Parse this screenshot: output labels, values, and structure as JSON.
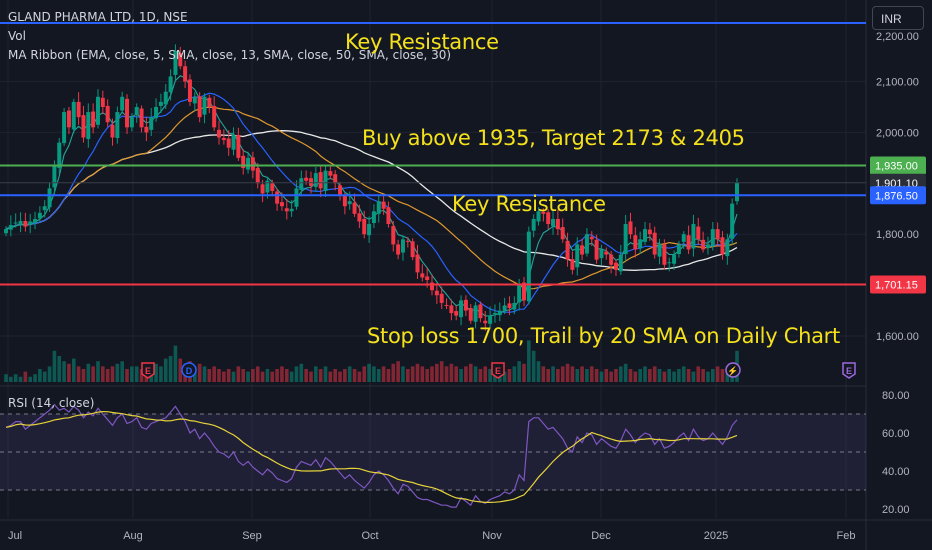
{
  "header": {
    "symbol_line": "GLAND PHARMA LTD, 1D, NSE",
    "vol_label": "Vol",
    "ma_ribbon_label": "MA Ribbon (EMA, close, 5, SMA, close, 13, SMA, close, 50, SMA, close, 30)",
    "rsi_label": "RSI (14, close)",
    "currency": "INR"
  },
  "annotations": {
    "key_resistance_top": "Key Resistance",
    "buy_text": "Buy above 1935, Target 2173 & 2405",
    "key_resistance_mid": "Key Resistance",
    "stop_loss_text": "Stop loss 1700, Trail by 20 SMA on Daily Chart"
  },
  "chart_data": {
    "type": "candlestick",
    "price_axis": {
      "ticks": [
        "2,100.00",
        "2,000.00",
        "1,800.00",
        "1,600.00"
      ],
      "values": [
        2100,
        2000,
        1800,
        1600
      ],
      "range": [
        1500,
        2215
      ]
    },
    "rsi_axis": {
      "ticks": [
        "80.00",
        "60.00",
        "40.00",
        "20.00"
      ],
      "values": [
        80,
        60,
        40,
        20
      ],
      "range": [
        14,
        86
      ],
      "bands": [
        70,
        50,
        30
      ]
    },
    "time_axis": [
      "Jul",
      "Aug",
      "Sep",
      "Oct",
      "Nov",
      "Dec",
      "2025",
      "Feb"
    ],
    "level_lines": [
      {
        "label": "1,935.00",
        "value": 1935,
        "color": "#4caf50"
      },
      {
        "label": "1,901.10",
        "value": 1901.1,
        "color": "#3a3e48"
      },
      {
        "label": "1,876.50",
        "value": 1876.5,
        "color": "#2962ff"
      },
      {
        "label": "1,701.15",
        "value": 1701.15,
        "color": "#f23645"
      },
      {
        "label": "",
        "value": 2215,
        "color": "#2962ff"
      }
    ],
    "close_series": [
      1810,
      1818,
      1823,
      1826,
      1815,
      1825,
      1830,
      1842,
      1855,
      1890,
      1935,
      1980,
      2040,
      2010,
      2060,
      2030,
      1990,
      2040,
      2010,
      2070,
      2050,
      2020,
      1990,
      2040,
      2070,
      2010,
      2030,
      2050,
      2010,
      2000,
      2030,
      2050,
      2060,
      2080,
      2110,
      2160,
      2130,
      2100,
      2060,
      2070,
      2030,
      2070,
      2050,
      2010,
      1990,
      1985,
      1970,
      1995,
      1950,
      1930,
      1950,
      1925,
      1900,
      1880,
      1905,
      1885,
      1860,
      1855,
      1845,
      1850,
      1890,
      1910,
      1905,
      1895,
      1920,
      1890,
      1925,
      1915,
      1900,
      1875,
      1855,
      1865,
      1840,
      1825,
      1800,
      1820,
      1845,
      1865,
      1850,
      1820,
      1780,
      1760,
      1790,
      1785,
      1755,
      1725,
      1715,
      1710,
      1690,
      1680,
      1665,
      1660,
      1645,
      1640,
      1670,
      1650,
      1630,
      1660,
      1635,
      1625,
      1640,
      1645,
      1650,
      1660,
      1655,
      1665,
      1700,
      1670,
      1805,
      1830,
      1845,
      1840,
      1820,
      1830,
      1810,
      1790,
      1750,
      1730,
      1780,
      1760,
      1800,
      1790,
      1750,
      1770,
      1760,
      1740,
      1730,
      1760,
      1820,
      1800,
      1770,
      1790,
      1810,
      1800,
      1760,
      1780,
      1740,
      1745,
      1760,
      1780,
      1800,
      1770,
      1820,
      1790,
      1770,
      1780,
      1810,
      1790,
      1760,
      1790,
      1860,
      1901
    ],
    "rsi_series": [
      63,
      64,
      66,
      66,
      62,
      64,
      66,
      68,
      70,
      72,
      75,
      72,
      73,
      71,
      74,
      72,
      68,
      71,
      69,
      73,
      70,
      67,
      64,
      68,
      70,
      65,
      66,
      68,
      63,
      62,
      65,
      66,
      67,
      68,
      71,
      74,
      70,
      66,
      60,
      62,
      57,
      60,
      57,
      53,
      50,
      49,
      47,
      50,
      45,
      43,
      45,
      42,
      40,
      38,
      41,
      39,
      36,
      35,
      34,
      36,
      42,
      45,
      44,
      43,
      46,
      42,
      47,
      45,
      42,
      39,
      36,
      38,
      35,
      33,
      31,
      34,
      38,
      40,
      38,
      35,
      31,
      28,
      33,
      32,
      29,
      26,
      25,
      25,
      24,
      23,
      22,
      22,
      21,
      21,
      26,
      24,
      22,
      27,
      24,
      23,
      25,
      26,
      27,
      29,
      28,
      30,
      38,
      35,
      66,
      68,
      68,
      65,
      62,
      63,
      60,
      57,
      52,
      50,
      58,
      55,
      60,
      59,
      54,
      57,
      55,
      53,
      52,
      56,
      62,
      59,
      55,
      58,
      60,
      59,
      54,
      57,
      52,
      53,
      55,
      58,
      60,
      56,
      62,
      58,
      56,
      57,
      60,
      57,
      54,
      58,
      64,
      67
    ],
    "volume": [
      3,
      2,
      3,
      2,
      4,
      2,
      3,
      5,
      4,
      6,
      12,
      10,
      8,
      7,
      9,
      6,
      5,
      7,
      6,
      8,
      6,
      5,
      6,
      7,
      8,
      5,
      6,
      6,
      5,
      5,
      6,
      7,
      6,
      9,
      10,
      14,
      9,
      7,
      8,
      6,
      7,
      6,
      5,
      6,
      5,
      4,
      5,
      4,
      6,
      5,
      4,
      5,
      6,
      4,
      5,
      4,
      5,
      6,
      5,
      4,
      6,
      7,
      5,
      4,
      6,
      5,
      6,
      4,
      5,
      4,
      5,
      6,
      5,
      4,
      6,
      7,
      6,
      5,
      6,
      5,
      7,
      8,
      6,
      5,
      6,
      7,
      6,
      5,
      6,
      7,
      8,
      6,
      7,
      6,
      5,
      6,
      7,
      6,
      5,
      6,
      5,
      6,
      5,
      4,
      5,
      6,
      8,
      7,
      16,
      12,
      8,
      6,
      5,
      6,
      5,
      6,
      7,
      6,
      5,
      6,
      5,
      6,
      5,
      4,
      5,
      4,
      5,
      6,
      7,
      5,
      4,
      5,
      6,
      5,
      6,
      5,
      4,
      5,
      4,
      5,
      6,
      5,
      4,
      6,
      5,
      4,
      5,
      6,
      5,
      4,
      6,
      12
    ]
  }
}
